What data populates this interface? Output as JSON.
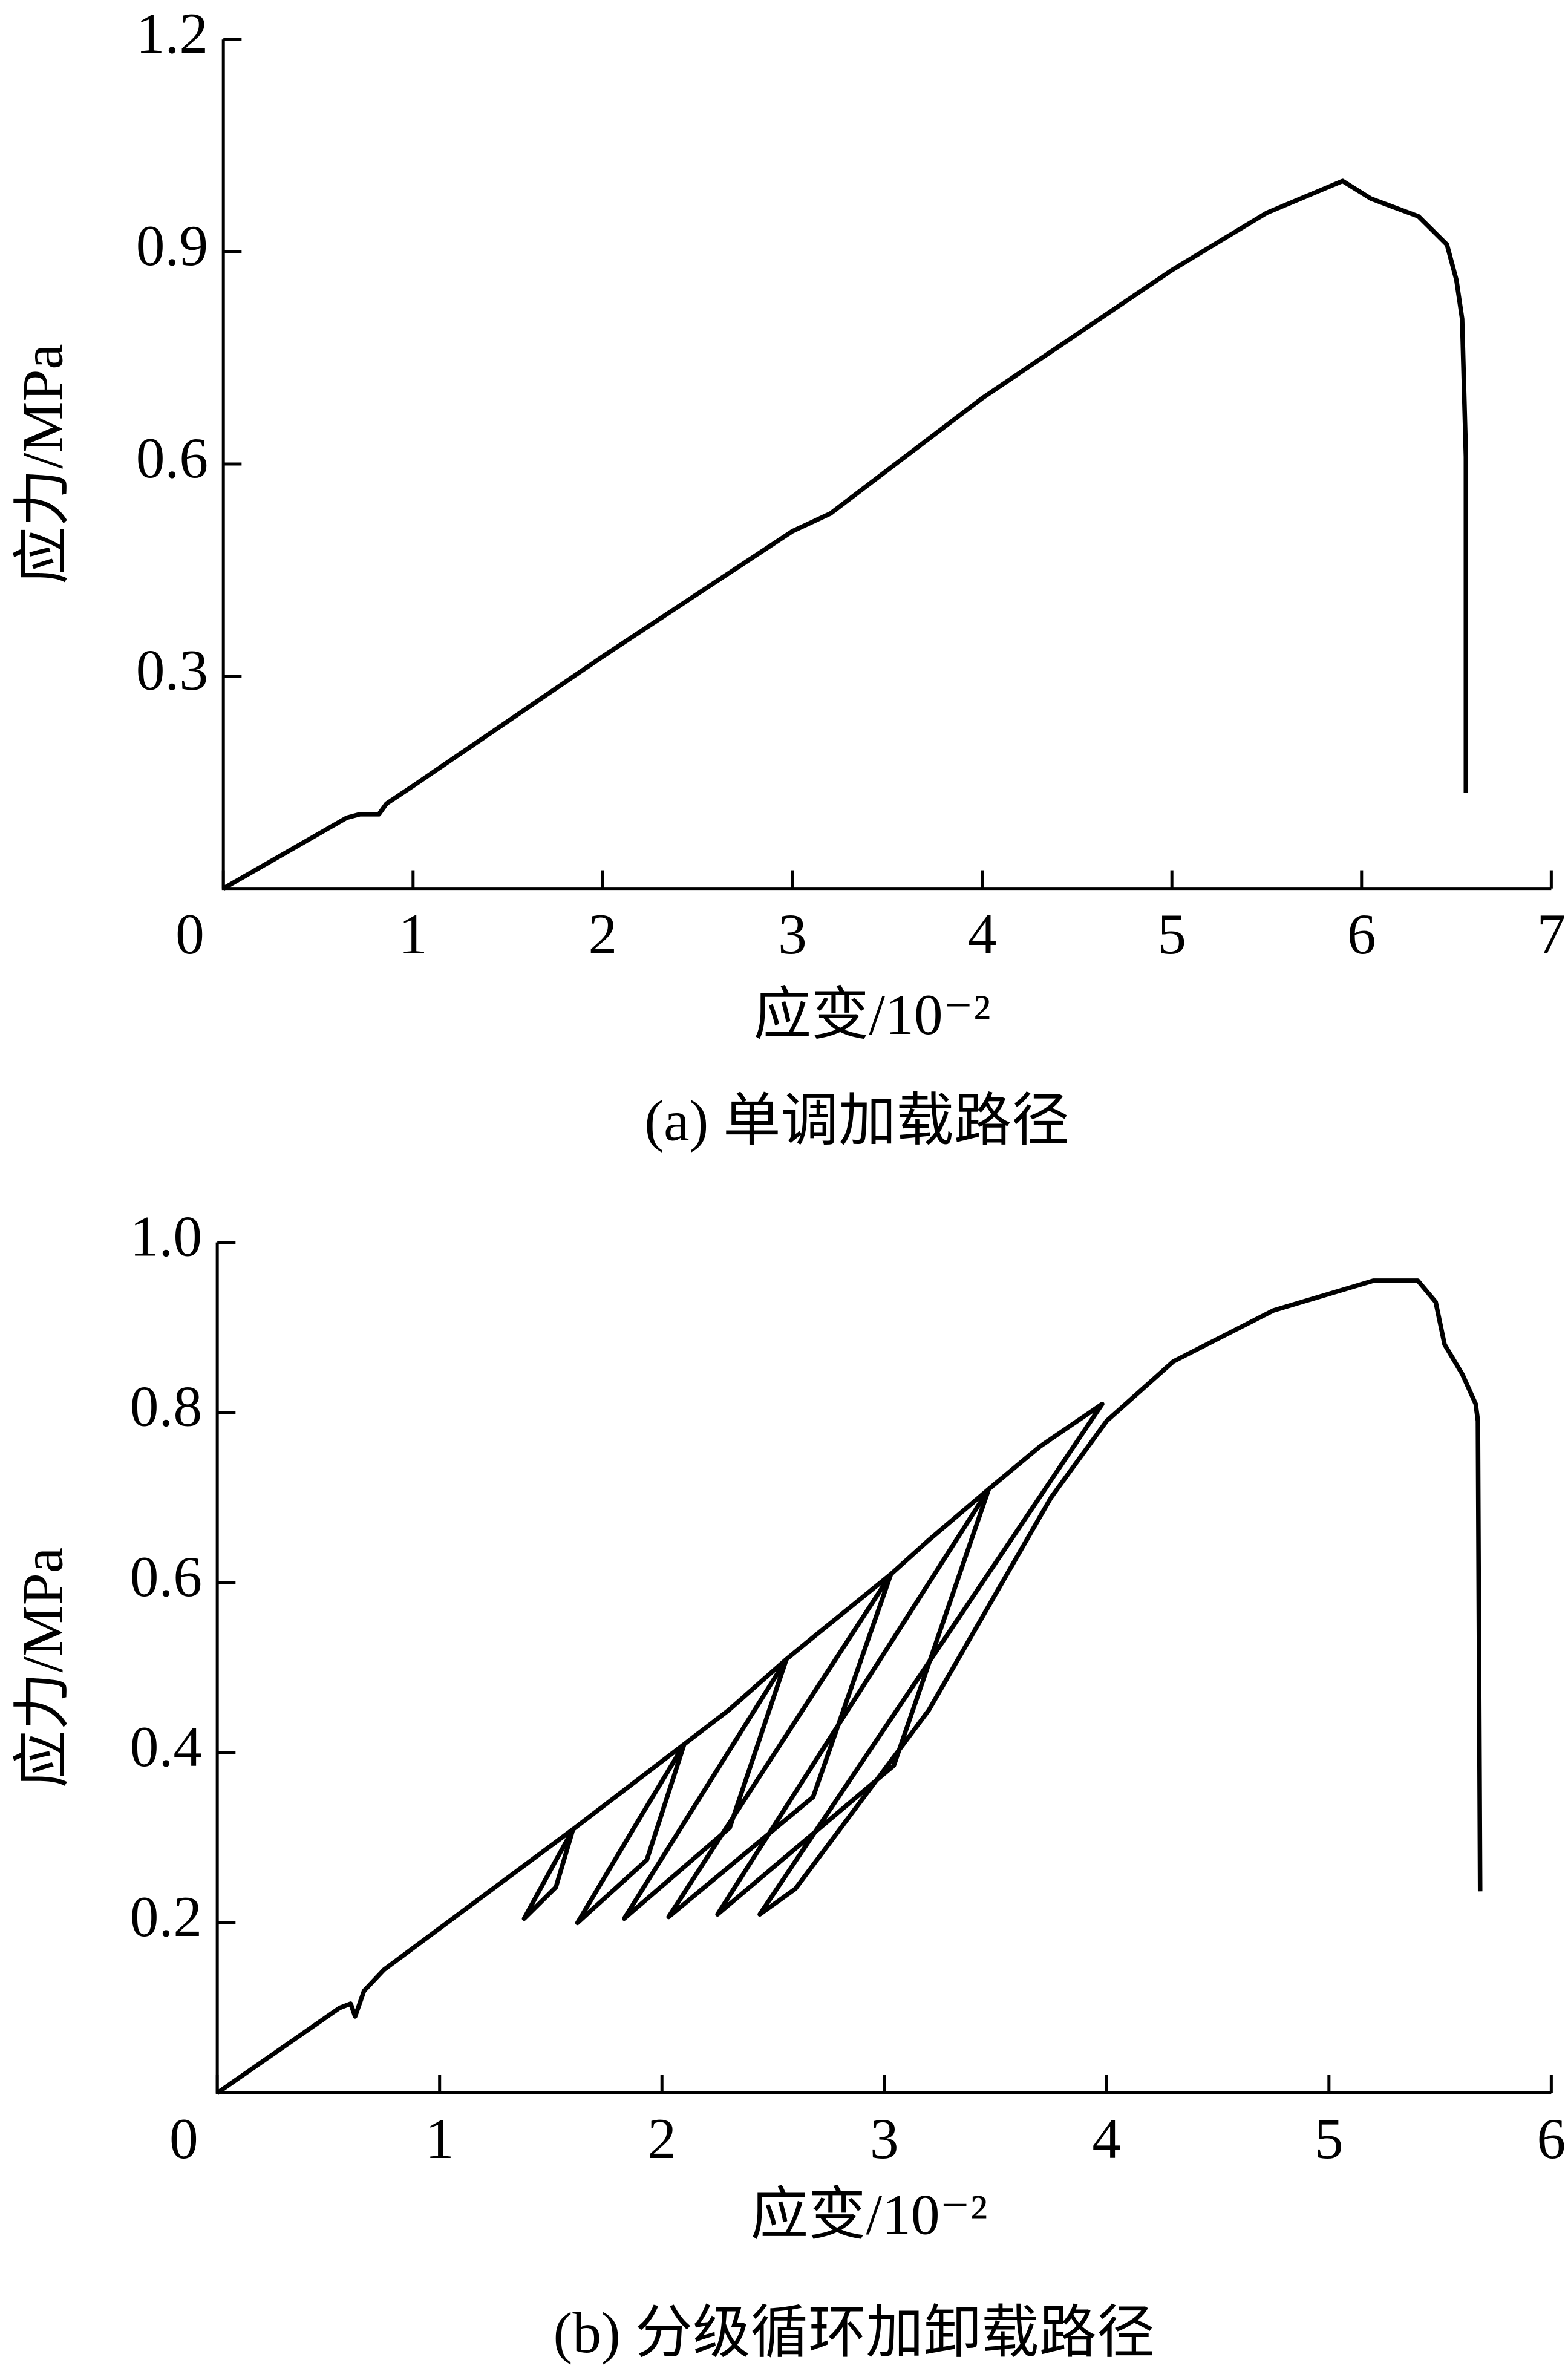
{
  "chart_data": [
    {
      "type": "line",
      "xlabel": "应变/10⁻²",
      "ylabel": "应力/MPa",
      "caption": "(a) 单调加载路径",
      "color": "#000000",
      "x": [
        0,
        0.65,
        0.72,
        0.82,
        0.86,
        1,
        2,
        3,
        3.2,
        4,
        5,
        5.5,
        5.9,
        6.05,
        6.3,
        6.45,
        6.5,
        6.53,
        6.55,
        6.55
      ],
      "values": [
        0,
        0.1,
        0.105,
        0.105,
        0.12,
        0.145,
        0.328,
        0.505,
        0.53,
        0.693,
        0.874,
        0.955,
        1.0,
        0.975,
        0.95,
        0.91,
        0.86,
        0.805,
        0.61,
        0.135
      ],
      "xlim": [
        0,
        7
      ],
      "ylim": [
        0,
        1.2
      ],
      "xticks": [
        0,
        1,
        2,
        3,
        4,
        5,
        6,
        7
      ],
      "yticks": [
        0.3,
        0.6,
        0.9,
        1.2
      ]
    },
    {
      "type": "line",
      "xlabel": "应变/10⁻²",
      "ylabel": "应力/MPa",
      "caption": "(b) 分级循环加卸载路径",
      "color": "#000000",
      "x": [
        0,
        0.55,
        0.6,
        0.62,
        0.66,
        0.75,
        1.6,
        1.501,
        1.38,
        1.523,
        1.6,
        2.1,
        1.884,
        1.62,
        1.932,
        2.1,
        2.3,
        2.56,
        2.232,
        1.83,
        2.305,
        2.56,
        2.7,
        3.03,
        2.58,
        2.03,
        2.68,
        3.03,
        3.2,
        3.47,
        2.921,
        2.25,
        3.043,
        3.47,
        3.7,
        3.98,
        3.287,
        2.44,
        2.6,
        3.2,
        3.75,
        4.0,
        4.3,
        4.75,
        5.2,
        5.4,
        5.48,
        5.52,
        5.6,
        5.66,
        5.67,
        5.68
      ],
      "values": [
        0,
        0.1,
        0.105,
        0.09,
        0.12,
        0.145,
        0.31,
        0.263,
        0.205,
        0.242,
        0.31,
        0.41,
        0.316,
        0.2,
        0.274,
        0.41,
        0.45,
        0.51,
        0.373,
        0.205,
        0.312,
        0.51,
        0.54,
        0.61,
        0.429,
        0.207,
        0.348,
        0.61,
        0.65,
        0.71,
        0.485,
        0.21,
        0.385,
        0.71,
        0.76,
        0.81,
        0.54,
        0.21,
        0.24,
        0.45,
        0.7,
        0.79,
        0.86,
        0.92,
        0.955,
        0.955,
        0.93,
        0.88,
        0.845,
        0.81,
        0.79,
        0.237
      ],
      "xlim": [
        0,
        6
      ],
      "ylim": [
        0,
        1.0
      ],
      "xticks": [
        0,
        1,
        2,
        3,
        4,
        5,
        6
      ],
      "yticks": [
        0.2,
        0.4,
        0.6,
        0.8,
        {
          "value": 1,
          "label": "1.0"
        }
      ]
    }
  ]
}
